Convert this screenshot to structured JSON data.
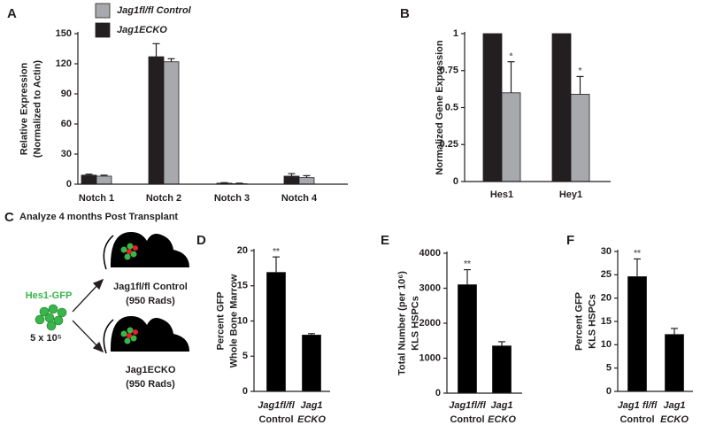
{
  "chart_data": [
    {
      "type": "bar",
      "label": "A",
      "ylabel": [
        "Relative Expression",
        "(Normalized to Actin)"
      ],
      "categories": [
        [
          "Notch 1"
        ],
        [
          "Notch 2"
        ],
        [
          "Notch 3"
        ],
        [
          "Notch 4"
        ]
      ],
      "series": [
        {
          "name": "Jag1ECKO",
          "color": "#231f20",
          "values": [
            9,
            127,
            1,
            8
          ],
          "errors": [
            1,
            13,
            0.5,
            2.5
          ]
        },
        {
          "name": "Jag1fl/fl Control",
          "color": "#a7a9ac",
          "values": [
            8,
            122,
            0.5,
            6.5
          ],
          "errors": [
            1,
            3,
            0.5,
            2
          ]
        }
      ],
      "ylim": [
        0,
        150
      ],
      "yticks": [
        0,
        30,
        60,
        90,
        120,
        150
      ]
    },
    {
      "type": "bar",
      "label": "B",
      "ylabel": [
        "Normalized Gene Expression"
      ],
      "categories": [
        [
          "Hes1"
        ],
        [
          "Hey1"
        ]
      ],
      "series": [
        {
          "color": "#231f20",
          "values": [
            1,
            1
          ]
        },
        {
          "color": "#a7a9ac",
          "values": [
            0.6,
            0.59
          ],
          "errors": [
            0.21,
            0.12
          ],
          "annotations": [
            "*",
            "*"
          ]
        }
      ],
      "ylim": [
        0,
        1
      ],
      "yticks": [
        0,
        0.25,
        0.5,
        0.75,
        1
      ]
    },
    {
      "type": "bar",
      "label": "D",
      "ylabel": [
        "Percent GFP",
        "Whole Bone Marrow"
      ],
      "categories": [
        [
          "Jag1fl/fl",
          "Control"
        ],
        [
          "Jag1",
          "ECKO"
        ]
      ],
      "series": [
        {
          "color": "#000000",
          "values": [
            16.9,
            8.0
          ],
          "errors": [
            2.2,
            0.2
          ],
          "annotations": [
            "**",
            null
          ]
        }
      ],
      "ylim": [
        0,
        20
      ],
      "yticks": [
        0,
        5,
        10,
        15,
        20
      ]
    },
    {
      "type": "bar",
      "label": "E",
      "ylabel": [
        "Total Number (per 10⁶)",
        "KLS HSPCs"
      ],
      "categories": [
        [
          "Jag1fl/fl",
          "Control"
        ],
        [
          "Jag1",
          "ECKO"
        ]
      ],
      "series": [
        {
          "color": "#000000",
          "values": [
            3100,
            1350
          ],
          "errors": [
            430,
            120
          ],
          "annotations": [
            "**",
            null
          ]
        }
      ],
      "ylim": [
        0,
        4000
      ],
      "yticks": [
        0,
        1000,
        2000,
        3000,
        4000
      ]
    },
    {
      "type": "bar",
      "label": "F",
      "ylabel": [
        "Percent GFP",
        "KLS HSPCs"
      ],
      "categories": [
        [
          "Jag1 fl/fl",
          "Control"
        ],
        [
          "Jag1",
          "ECKO"
        ]
      ],
      "series": [
        {
          "color": "#000000",
          "values": [
            24.6,
            12.2
          ],
          "errors": [
            3.8,
            1.3
          ],
          "annotations": [
            "**",
            null
          ]
        }
      ],
      "ylim": [
        0,
        30
      ],
      "yticks": [
        0,
        5,
        10,
        15,
        20,
        25,
        30
      ]
    }
  ],
  "diagram": {
    "label": "C",
    "title": "Analyze 4 months Post Transplant",
    "cells": "Hes1-GFP",
    "count": "5 x 10⁵",
    "recipients": [
      {
        "name": "Jag1fl/fl Control",
        "dose": "(950 Rads)"
      },
      {
        "name": "Jag1ECKO",
        "dose": "(950 Rads)"
      }
    ]
  }
}
